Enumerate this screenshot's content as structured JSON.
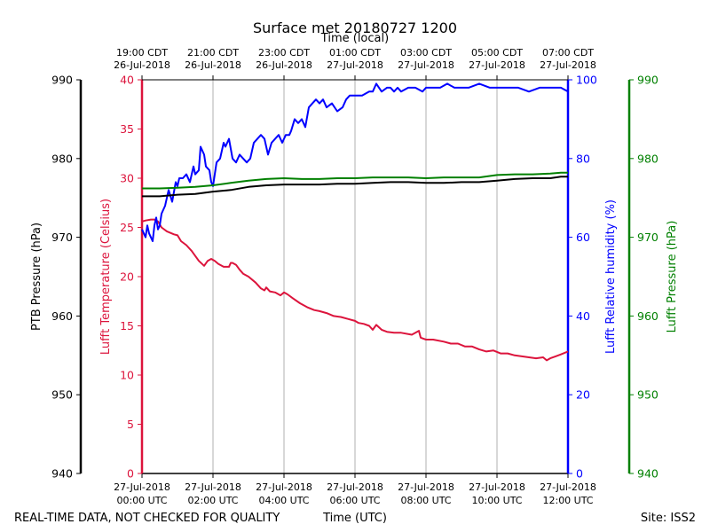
{
  "chart_data": {
    "type": "line",
    "title": "Surface met 20180727 1200",
    "top_axis_label": "Time (local)",
    "bottom_axis_label": "Time (UTC)",
    "footer_left": "REAL-TIME DATA, NOT CHECKED FOR QUALITY",
    "footer_right": "Site: ISS2",
    "x_range_hours_utc": [
      0,
      12
    ],
    "top_ticks": [
      {
        "hour": 0,
        "line1": "19:00 CDT",
        "line2": "26-Jul-2018"
      },
      {
        "hour": 2,
        "line1": "21:00 CDT",
        "line2": "26-Jul-2018"
      },
      {
        "hour": 4,
        "line1": "23:00 CDT",
        "line2": "26-Jul-2018"
      },
      {
        "hour": 6,
        "line1": "01:00 CDT",
        "line2": "27-Jul-2018"
      },
      {
        "hour": 8,
        "line1": "03:00 CDT",
        "line2": "27-Jul-2018"
      },
      {
        "hour": 10,
        "line1": "05:00 CDT",
        "line2": "27-Jul-2018"
      },
      {
        "hour": 12,
        "line1": "07:00 CDT",
        "line2": "27-Jul-2018"
      }
    ],
    "bottom_ticks": [
      {
        "hour": 0,
        "line1": "27-Jul-2018",
        "line2": "00:00 UTC"
      },
      {
        "hour": 2,
        "line1": "27-Jul-2018",
        "line2": "02:00 UTC"
      },
      {
        "hour": 4,
        "line1": "27-Jul-2018",
        "line2": "04:00 UTC"
      },
      {
        "hour": 6,
        "line1": "27-Jul-2018",
        "line2": "06:00 UTC"
      },
      {
        "hour": 8,
        "line1": "27-Jul-2018",
        "line2": "08:00 UTC"
      },
      {
        "hour": 10,
        "line1": "27-Jul-2018",
        "line2": "10:00 UTC"
      },
      {
        "hour": 12,
        "line1": "27-Jul-2018",
        "line2": "12:00 UTC"
      }
    ],
    "axes": {
      "ptb_pressure": {
        "label": "PTB Pressure (hPa)",
        "range": [
          940,
          990
        ],
        "ticks": [
          940,
          950,
          960,
          970,
          980,
          990
        ],
        "color": "#000000"
      },
      "temperature": {
        "label": "Lufft Temperature (Celsius)",
        "range": [
          0,
          40
        ],
        "ticks": [
          0,
          5,
          10,
          15,
          20,
          25,
          30,
          35,
          40
        ],
        "color": "#dc143c"
      },
      "humidity": {
        "label": "Lufft Relative humidity (%)",
        "range": [
          0,
          100
        ],
        "ticks": [
          0,
          20,
          40,
          60,
          80,
          100
        ],
        "color": "#0000ff"
      },
      "lufft_pressure": {
        "label": "Lufft Pressure (hPa)",
        "range": [
          940,
          990
        ],
        "ticks": [
          940,
          950,
          960,
          970,
          980,
          990
        ],
        "color": "#008000"
      }
    },
    "series": [
      {
        "name": "Lufft Temperature",
        "axis": "temperature",
        "color": "#dc143c",
        "x": [
          0.0,
          0.1,
          0.25,
          0.35,
          0.45,
          0.55,
          0.7,
          0.9,
          1.0,
          1.1,
          1.25,
          1.4,
          1.6,
          1.75,
          1.85,
          1.95,
          2.05,
          2.15,
          2.3,
          2.45,
          2.5,
          2.55,
          2.65,
          2.75,
          2.85,
          3.0,
          3.2,
          3.35,
          3.45,
          3.5,
          3.6,
          3.75,
          3.9,
          4.0,
          4.1,
          4.25,
          4.45,
          4.65,
          4.85,
          5.0,
          5.2,
          5.4,
          5.6,
          5.8,
          6.0,
          6.1,
          6.25,
          6.4,
          6.5,
          6.6,
          6.75,
          6.9,
          7.1,
          7.3,
          7.6,
          7.8,
          7.85,
          8.0,
          8.2,
          8.5,
          8.7,
          8.9,
          9.1,
          9.3,
          9.5,
          9.7,
          9.9,
          10.1,
          10.3,
          10.5,
          10.7,
          10.9,
          11.1,
          11.3,
          11.4,
          11.5,
          11.65,
          11.8,
          12.0
        ],
        "values": [
          25.6,
          25.7,
          25.8,
          25.8,
          25.6,
          25.0,
          24.6,
          24.3,
          24.2,
          23.6,
          23.2,
          22.6,
          21.6,
          21.1,
          21.6,
          21.8,
          21.6,
          21.3,
          21.0,
          21.0,
          21.4,
          21.4,
          21.2,
          20.7,
          20.3,
          20.0,
          19.4,
          18.8,
          18.6,
          18.9,
          18.5,
          18.4,
          18.1,
          18.4,
          18.2,
          17.8,
          17.3,
          16.9,
          16.6,
          16.5,
          16.3,
          16.0,
          15.9,
          15.7,
          15.5,
          15.3,
          15.2,
          15.0,
          14.6,
          15.1,
          14.6,
          14.4,
          14.3,
          14.3,
          14.1,
          14.5,
          13.8,
          13.6,
          13.6,
          13.4,
          13.2,
          13.2,
          12.9,
          12.9,
          12.6,
          12.4,
          12.5,
          12.2,
          12.2,
          12.0,
          11.9,
          11.8,
          11.7,
          11.8,
          11.5,
          11.7,
          11.9,
          12.1,
          12.4
        ]
      },
      {
        "name": "Lufft Relative humidity",
        "axis": "humidity",
        "color": "#0000ff",
        "x": [
          0.0,
          0.1,
          0.15,
          0.2,
          0.3,
          0.35,
          0.4,
          0.45,
          0.5,
          0.55,
          0.65,
          0.75,
          0.85,
          0.95,
          1.0,
          1.05,
          1.15,
          1.25,
          1.35,
          1.45,
          1.5,
          1.6,
          1.65,
          1.75,
          1.8,
          1.9,
          1.95,
          2.0,
          2.1,
          2.2,
          2.3,
          2.35,
          2.45,
          2.55,
          2.65,
          2.75,
          2.85,
          2.95,
          3.05,
          3.15,
          3.25,
          3.35,
          3.45,
          3.55,
          3.65,
          3.75,
          3.85,
          3.95,
          4.05,
          4.15,
          4.2,
          4.3,
          4.4,
          4.5,
          4.6,
          4.7,
          4.8,
          4.9,
          5.0,
          5.1,
          5.2,
          5.35,
          5.5,
          5.65,
          5.75,
          5.85,
          6.0,
          6.2,
          6.4,
          6.5,
          6.6,
          6.75,
          6.9,
          7.0,
          7.1,
          7.2,
          7.3,
          7.5,
          7.7,
          7.9,
          8.0,
          8.2,
          8.4,
          8.6,
          8.8,
          9.0,
          9.2,
          9.5,
          9.8,
          10.0,
          10.3,
          10.6,
          10.9,
          11.2,
          11.5,
          11.8,
          12.0
        ],
        "values": [
          62,
          60,
          63,
          61,
          59,
          63,
          65,
          62,
          63,
          66,
          68,
          72,
          69,
          74,
          73,
          75,
          75,
          76,
          74,
          78,
          76,
          77,
          83,
          81,
          78,
          77,
          74,
          73,
          79,
          80,
          84,
          83,
          85,
          80,
          79,
          81,
          80,
          79,
          80,
          84,
          85,
          86,
          85,
          81,
          84,
          85,
          86,
          84,
          86,
          86,
          87,
          90,
          89,
          90,
          88,
          93,
          94,
          95,
          94,
          95,
          93,
          94,
          92,
          93,
          95,
          96,
          96,
          96,
          97,
          97,
          99,
          97,
          98,
          98,
          97,
          98,
          97,
          98,
          98,
          97,
          98,
          98,
          98,
          99,
          98,
          98,
          98,
          99,
          98,
          98,
          98,
          98,
          97,
          98,
          98,
          98,
          97
        ]
      },
      {
        "name": "PTB Pressure",
        "axis": "ptb_pressure",
        "color": "#000000",
        "x": [
          0.0,
          0.5,
          1.0,
          1.5,
          2.0,
          2.5,
          3.0,
          3.5,
          4.0,
          4.5,
          5.0,
          5.5,
          6.0,
          6.5,
          7.0,
          7.5,
          8.0,
          8.5,
          9.0,
          9.5,
          10.0,
          10.5,
          11.0,
          11.5,
          11.8,
          12.0
        ],
        "values": [
          975.2,
          975.2,
          975.4,
          975.5,
          975.8,
          976.0,
          976.4,
          976.6,
          976.7,
          976.7,
          976.7,
          976.8,
          976.8,
          976.9,
          977.0,
          977.0,
          976.9,
          976.9,
          977.0,
          977.0,
          977.2,
          977.4,
          977.5,
          977.5,
          977.7,
          977.7
        ]
      },
      {
        "name": "Lufft Pressure",
        "axis": "lufft_pressure",
        "color": "#008000",
        "x": [
          0.0,
          0.5,
          1.0,
          1.5,
          2.0,
          2.5,
          3.0,
          3.5,
          4.0,
          4.5,
          5.0,
          5.5,
          6.0,
          6.5,
          7.0,
          7.5,
          8.0,
          8.5,
          9.0,
          9.5,
          10.0,
          10.5,
          11.0,
          11.5,
          11.8,
          12.0
        ],
        "values": [
          976.2,
          976.2,
          976.3,
          976.4,
          976.6,
          976.9,
          977.2,
          977.4,
          977.5,
          977.4,
          977.4,
          977.5,
          977.5,
          977.6,
          977.6,
          977.6,
          977.5,
          977.6,
          977.6,
          977.6,
          977.9,
          978.0,
          978.0,
          978.1,
          978.2,
          978.2
        ]
      }
    ]
  }
}
